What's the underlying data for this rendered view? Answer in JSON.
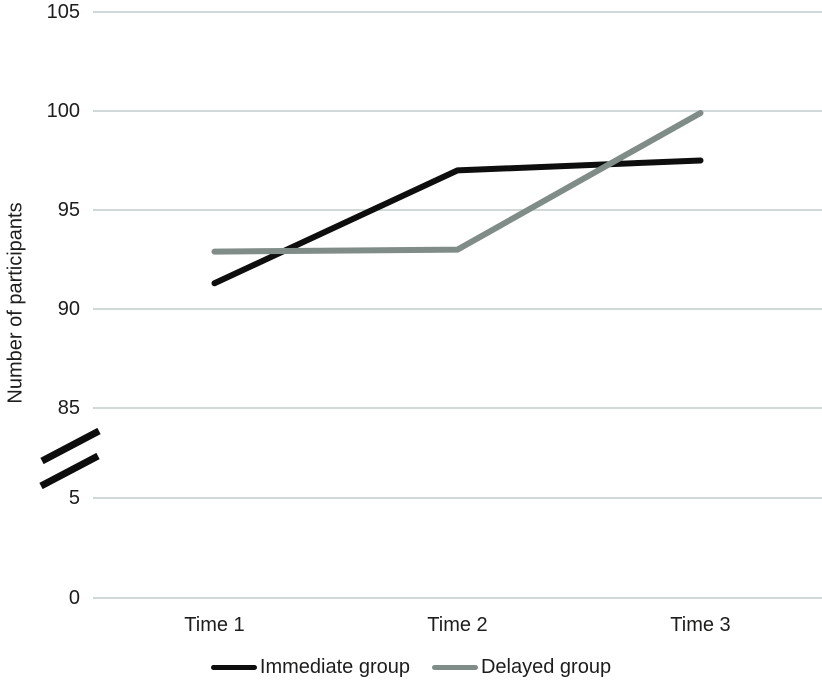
{
  "chart_data": {
    "type": "line",
    "title": "",
    "xlabel": "",
    "ylabel": "Number of participants",
    "categories": [
      "Time 1",
      "Time 2",
      "Time 3"
    ],
    "series": [
      {
        "name": "Immediate group",
        "color": "#0e0e0e",
        "values": [
          91.3,
          97.0,
          97.5
        ]
      },
      {
        "name": "Delayed group",
        "color": "#7f8c88",
        "values": [
          92.9,
          93.0,
          99.9
        ]
      }
    ],
    "y_ticks": [
      105,
      100,
      95,
      90,
      85,
      5,
      0
    ],
    "axis_break": {
      "between": [
        5,
        85
      ]
    },
    "ylim_segments": [
      [
        0,
        5
      ],
      [
        85,
        105
      ]
    ],
    "grid": "horizontal",
    "gridline_color": "#c9d2d2",
    "text_color": "#1d1d1b",
    "background": "#ffffff",
    "legend_position": "bottom"
  }
}
